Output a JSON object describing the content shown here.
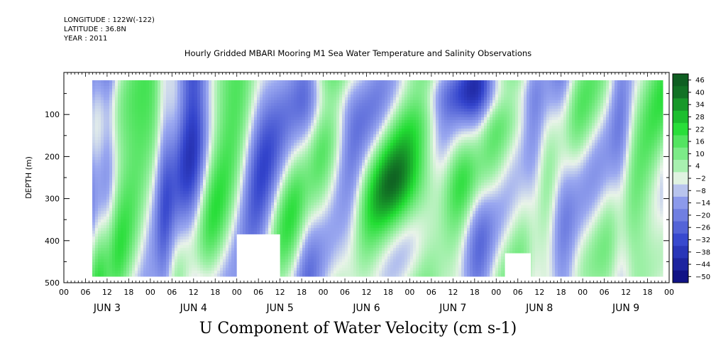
{
  "header": {
    "longitude": "LONGITUDE : 122W(-122)",
    "latitude": "LATITUDE : 36.8N",
    "year": "YEAR : 2011",
    "title": "Hourly Gridded MBARI Mooring M1 Sea Water Temperature and Salinity Observations"
  },
  "colors": {
    "blue_dark": "#0b0b7a",
    "blue_mid": "#3344cc",
    "blue_light": "#9aa8f0",
    "neutral": "#e9f3e9",
    "green_light": "#9ff0a8",
    "green_mid": "#22dd33",
    "green_dark": "#0f5f22",
    "missing": "#ffffff"
  },
  "chart_data": {
    "type": "heatmap",
    "title": "Hourly Gridded MBARI Mooring M1 Sea Water Temperature and Salinity Observations",
    "subtitle": "U Component of Water Velocity (cm s-1)",
    "xlabel": "",
    "ylabel": "DEPTH (m)",
    "ylim": [
      500,
      0
    ],
    "x_days": [
      "JUN 3",
      "JUN 4",
      "JUN 5",
      "JUN 6",
      "JUN 7",
      "JUN 8",
      "JUN 9"
    ],
    "x_hour_ticks": [
      "00",
      "06",
      "12",
      "18",
      "00",
      "06",
      "12",
      "18",
      "00",
      "06",
      "12",
      "18",
      "00",
      "06",
      "12",
      "18",
      "00",
      "06",
      "12",
      "18",
      "00",
      "06",
      "12",
      "18",
      "00",
      "06",
      "12",
      "18",
      "00"
    ],
    "y_ticks": [
      100,
      200,
      300,
      400,
      500
    ],
    "colorbar": {
      "levels": [
        46,
        40,
        34,
        28,
        22,
        16,
        10,
        4,
        -2,
        -8,
        -14,
        -20,
        -26,
        -32,
        -38,
        -44,
        -50
      ]
    },
    "missing_regions": [
      {
        "day_start": 5.0,
        "day_end": 5.5,
        "depth_top": 385,
        "depth_bottom": 490
      },
      {
        "day_start": 8.1,
        "day_end": 8.4,
        "depth_top": 430,
        "depth_bottom": 490
      }
    ]
  }
}
